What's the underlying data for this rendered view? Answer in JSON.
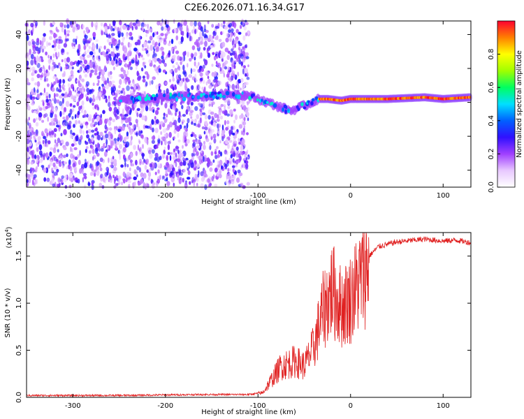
{
  "title": "C2E6.2026.071.16.34.G17",
  "chart_data": [
    {
      "type": "heatmap",
      "xlabel": "Height of straight line (km)",
      "ylabel": "Frequency (Hz)",
      "xlim": [
        -350,
        130
      ],
      "ylim": [
        -50,
        48
      ],
      "xticks": [
        -300,
        -200,
        -100,
        0,
        100
      ],
      "yticks": [
        -40,
        -20,
        0,
        20,
        40
      ],
      "colorbar": {
        "label": "Normalized spectral amplitude",
        "range": [
          0,
          1
        ],
        "ticks": [
          "0.0",
          "0.2",
          "0.4",
          "0.6",
          "0.8"
        ],
        "colors": [
          "#ffffff",
          "#e8c8ff",
          "#a040ff",
          "#3010ff",
          "#0060ff",
          "#00e0ff",
          "#00ff60",
          "#a0ff00",
          "#ffff00",
          "#ff8000",
          "#ff0030"
        ]
      },
      "regions": [
        {
          "name": "noise",
          "x_range": [
            -350,
            -110
          ],
          "y_range": [
            -50,
            48
          ],
          "amplitude": 0.05
        },
        {
          "name": "signal-track",
          "points": [
            [
              -250,
              1
            ],
            [
              -200,
              3
            ],
            [
              -150,
              4
            ],
            [
              -130,
              5
            ],
            [
              -110,
              4
            ],
            [
              -95,
              1
            ],
            [
              -80,
              -2
            ],
            [
              -65,
              -5
            ],
            [
              -55,
              -3
            ],
            [
              -45,
              -1
            ],
            [
              -35,
              2
            ],
            [
              -25,
              2
            ],
            [
              -10,
              1
            ],
            [
              0,
              2
            ],
            [
              40,
              2
            ],
            [
              80,
              3
            ],
            [
              100,
              2
            ],
            [
              130,
              3
            ]
          ],
          "amplitude_low": [
            0.3,
            0.55
          ],
          "amplitude_high": [
            0.85,
            1.0
          ]
        }
      ]
    },
    {
      "type": "line",
      "xlabel": "Height of straight line (km)",
      "ylabel": "SNR (10 * v/v)",
      "yexponent": "(x10",
      "yexponent_power": "4",
      "xlim": [
        -350,
        130
      ],
      "ylim": [
        0,
        1.75
      ],
      "xticks": [
        -300,
        -200,
        -100,
        0,
        100
      ],
      "yticks": [
        "0.0",
        "0.5",
        "1.0",
        "1.5"
      ],
      "color": "#e02020",
      "envelope": [
        [
          -350,
          0.02
        ],
        [
          -250,
          0.02
        ],
        [
          -160,
          0.03
        ],
        [
          -110,
          0.03
        ],
        [
          -95,
          0.05
        ],
        [
          -85,
          0.2
        ],
        [
          -75,
          0.35
        ],
        [
          -60,
          0.4
        ],
        [
          -50,
          0.35
        ],
        [
          -40,
          0.55
        ],
        [
          -30,
          0.95
        ],
        [
          -20,
          1.2
        ],
        [
          -10,
          1.0
        ],
        [
          0,
          1.1
        ],
        [
          10,
          1.3
        ],
        [
          20,
          1.5
        ],
        [
          30,
          1.6
        ],
        [
          50,
          1.65
        ],
        [
          80,
          1.68
        ],
        [
          100,
          1.66
        ],
        [
          115,
          1.67
        ],
        [
          130,
          1.64
        ]
      ]
    }
  ]
}
